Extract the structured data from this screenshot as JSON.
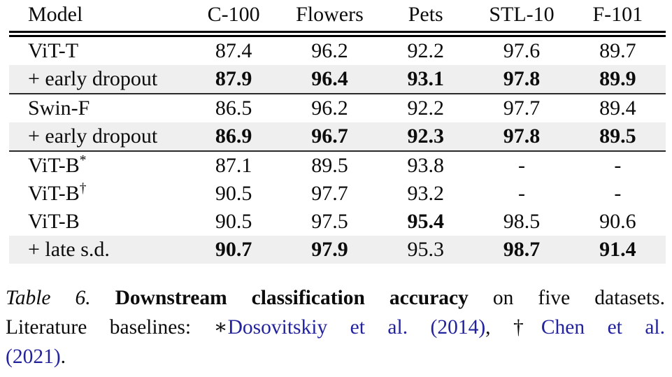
{
  "table": {
    "headers": [
      "Model",
      "C-100",
      "Flowers",
      "Pets",
      "STL-10",
      "F-101"
    ],
    "rows": [
      {
        "model": "ViT-T",
        "values": [
          "87.4",
          "96.2",
          "92.2",
          "97.6",
          "89.7"
        ]
      },
      {
        "model": "+ early dropout",
        "values": [
          "87.9",
          "96.4",
          "93.1",
          "97.8",
          "89.9"
        ]
      },
      {
        "model": "Swin-F",
        "values": [
          "86.5",
          "96.2",
          "92.2",
          "97.7",
          "89.4"
        ]
      },
      {
        "model": "+ early dropout",
        "values": [
          "86.9",
          "96.7",
          "92.3",
          "97.8",
          "89.5"
        ]
      },
      {
        "model": "ViT-B",
        "sup": "*",
        "values": [
          "87.1",
          "89.5",
          "93.8",
          "-",
          "-"
        ]
      },
      {
        "model": "ViT-B",
        "sup": "†",
        "values": [
          "90.5",
          "97.7",
          "93.2",
          "-",
          "-"
        ]
      },
      {
        "model": "ViT-B",
        "values": [
          "90.5",
          "97.5",
          "95.4",
          "98.5",
          "90.6"
        ]
      },
      {
        "model": "+ late s.d.",
        "values": [
          "90.7",
          "97.9",
          "95.3",
          "98.7",
          "91.4"
        ]
      }
    ]
  },
  "caption": {
    "label": "Table 6. ",
    "title": "Downstream classification accuracy",
    "rest1": " on five datasets.",
    "line2_prefix": "Literature baselines: ",
    "star": "∗",
    "link1": "Dosovitskiy et al. (2014)",
    "separator": ", ",
    "dagger": "†",
    "link2": "Chen et al.",
    "link2_cont": "(2021)",
    "period": "."
  },
  "colors": {
    "link_blue": "#23239e",
    "row_shade": "#efefef",
    "rule_black": "#000000"
  }
}
